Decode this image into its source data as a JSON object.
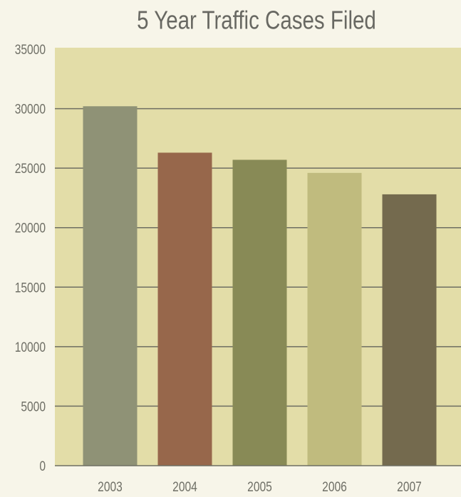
{
  "chart_data": {
    "type": "bar",
    "title": "5 Year Traffic Cases Filed",
    "categories": [
      "2003",
      "2004",
      "2005",
      "2006",
      "2007"
    ],
    "values": [
      30200,
      26300,
      25700,
      24600,
      22800
    ],
    "colors": [
      "#8f9276",
      "#97674b",
      "#888a56",
      "#c0bb7e",
      "#746a4e"
    ],
    "ylim": [
      0,
      35000
    ],
    "yticks": [
      0,
      5000,
      10000,
      15000,
      20000,
      25000,
      30000,
      35000
    ],
    "grid": true
  }
}
